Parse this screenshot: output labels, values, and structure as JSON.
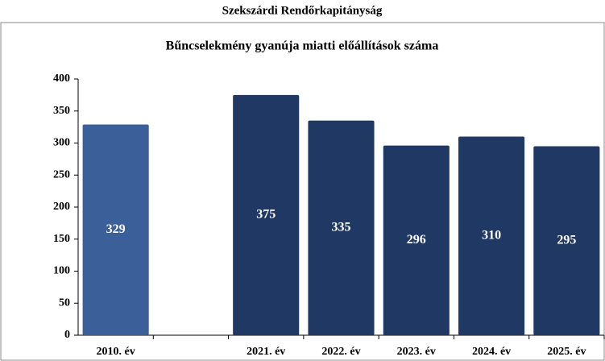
{
  "chart_data": {
    "type": "bar",
    "title": "Szekszárdi Rendőrkapitányság",
    "subtitle": "Bűncselekmény gyanúja miatti előállítások száma",
    "categories": [
      "2010. év",
      null,
      "2021. év",
      "2022. év",
      "2023. év",
      "2024. év",
      "2025. év"
    ],
    "values": [
      329,
      null,
      375,
      335,
      296,
      310,
      295
    ],
    "colors": [
      "#3b5f98",
      "#1f3864",
      "#1f3864",
      "#1f3864",
      "#1f3864",
      "#1f3864",
      "#1f3864"
    ],
    "ylim": [
      0,
      400
    ],
    "yticks": [
      0,
      50,
      100,
      150,
      200,
      250,
      300,
      350,
      400
    ],
    "grid": false
  }
}
